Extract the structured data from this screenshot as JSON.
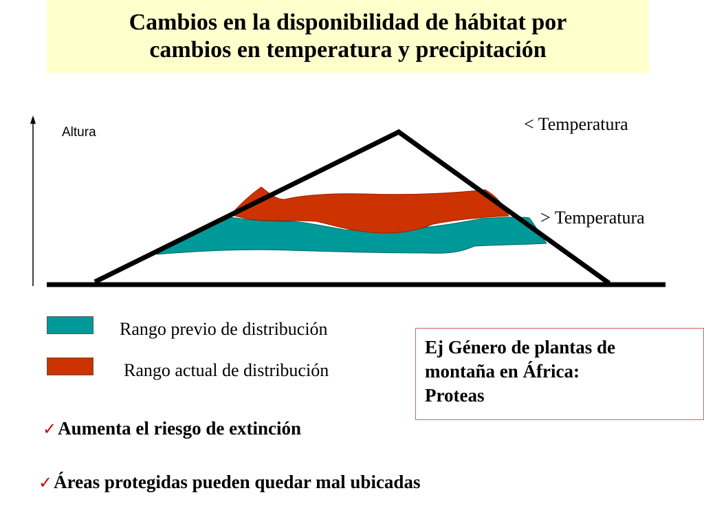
{
  "title": {
    "line1": "Cambios en la disponibilidad de hábitat por",
    "line2": "cambios en temperatura y precipitación"
  },
  "diagram": {
    "y_axis_label": "Altura",
    "top_label": "< Temperatura",
    "bottom_label": "> Temperatura"
  },
  "legend": {
    "previous_label": "Rango previo de distribución",
    "previous_color": "#009999",
    "current_label": "Rango actual de distribución",
    "current_color": "#cc3300"
  },
  "example": {
    "line1": "Ej Género de plantas de",
    "line2": "montaña en África:",
    "line3": "Proteas"
  },
  "bullets": [
    {
      "icon": "checkmark-icon",
      "text": "Aumenta el riesgo de extinción"
    },
    {
      "icon": "checkmark-icon",
      "text": "Áreas protegidas pueden quedar mal ubicadas"
    }
  ]
}
